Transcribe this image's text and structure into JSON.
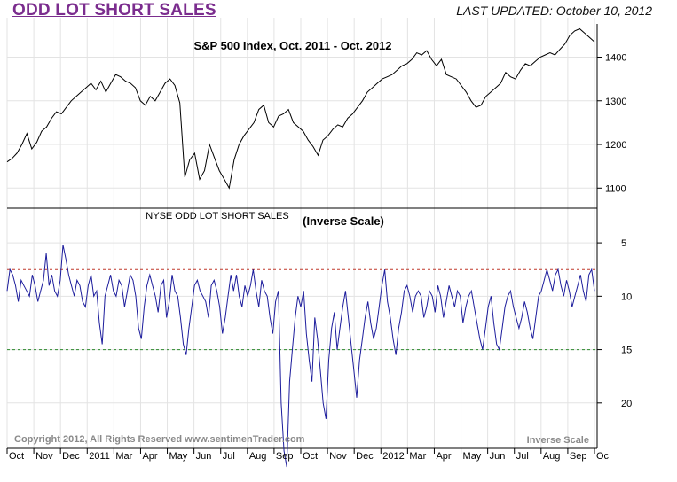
{
  "header": {
    "title": "ODD LOT SHORT SALES",
    "last_updated": "LAST UPDATED:  October 10, 2012"
  },
  "footer": {
    "copyright": "Copyright 2012, All Rights Reserved  www.sentimenTrader.com",
    "scale_note": "Inverse Scale"
  },
  "colors": {
    "sp500_line": "#000000",
    "odd_lot_line": "#1c1c9c",
    "upper_reference": "#c0392b",
    "lower_reference": "#2e8b2e",
    "title": "#7b2d8e"
  },
  "x_axis": {
    "labels": [
      "Oct",
      "Nov",
      "Dec",
      "2011",
      "Mar",
      "Apr",
      "May",
      "Jun",
      "Jul",
      "Aug",
      "Sep",
      "Oct",
      "Nov",
      "Dec",
      "2012",
      "Mar",
      "Apr",
      "May",
      "Jun",
      "Jul",
      "Aug",
      "Sep",
      "Oc"
    ]
  },
  "chart_data": [
    {
      "type": "line",
      "title": "S&P 500 Index, Oct. 2011 - Oct. 2012",
      "ylim": [
        1060,
        1470
      ],
      "yticks": [
        1100,
        1200,
        1300,
        1400
      ],
      "grid": true,
      "series": [
        {
          "values": [
            1160,
            1168,
            1180,
            1200,
            1225,
            1190,
            1205,
            1230,
            1240,
            1260,
            1275,
            1270,
            1285,
            1300,
            1310,
            1320,
            1330,
            1340,
            1325,
            1345,
            1320,
            1340,
            1360,
            1355,
            1345,
            1340,
            1330,
            1300,
            1290,
            1310,
            1300,
            1320,
            1340,
            1350,
            1335,
            1295,
            1125,
            1165,
            1180,
            1120,
            1140,
            1200,
            1170,
            1140,
            1120,
            1100,
            1165,
            1200,
            1220,
            1235,
            1250,
            1280,
            1290,
            1250,
            1240,
            1265,
            1270,
            1280,
            1250,
            1240,
            1230,
            1210,
            1195,
            1175,
            1210,
            1220,
            1235,
            1245,
            1240,
            1260,
            1270,
            1285,
            1300,
            1320,
            1330,
            1340,
            1350,
            1355,
            1360,
            1370,
            1380,
            1385,
            1395,
            1410,
            1405,
            1415,
            1395,
            1380,
            1395,
            1360,
            1355,
            1350,
            1335,
            1320,
            1300,
            1285,
            1290,
            1310,
            1320,
            1330,
            1340,
            1365,
            1355,
            1350,
            1370,
            1385,
            1380,
            1390,
            1400,
            1405,
            1410,
            1405,
            1418,
            1430,
            1450,
            1460,
            1465,
            1455,
            1445,
            1435
          ]
        },
        {
          "values": [
            9.5,
            7.5,
            8.0,
            9.0,
            10.5,
            8.5,
            9.0,
            9.5,
            10.0,
            8.0,
            9.0,
            10.5,
            9.5,
            8.5,
            6.0,
            9.0,
            8.0,
            9.5,
            10.0,
            8.5,
            5.2,
            6.5,
            8.0,
            9.0,
            10.0,
            8.5,
            9.0,
            10.5,
            11.0,
            9.0,
            8.0,
            10.0,
            9.5,
            12.5,
            14.5,
            10.0,
            9.0,
            8.0,
            9.5,
            10.0,
            8.5,
            9.0,
            11.0,
            9.5,
            8.0,
            8.5,
            10.0,
            13.0,
            14.0,
            11.0,
            9.0,
            8.0,
            9.0,
            10.0,
            11.5,
            9.0,
            8.5,
            12.0,
            10.5,
            8.0,
            9.5,
            10.0,
            12.0,
            14.5,
            15.5,
            13.0,
            11.0,
            9.0,
            8.5,
            9.5,
            10.0,
            10.5,
            12.0,
            9.0,
            8.5,
            9.5,
            11.0,
            13.5,
            12.0,
            10.0,
            8.0,
            9.5,
            8.0,
            10.0,
            11.0,
            9.0,
            10.0,
            9.0,
            7.5,
            9.5,
            11.0,
            8.5,
            9.5,
            10.0,
            12.0,
            13.5,
            10.5,
            9.5,
            20.0,
            24.5,
            26.0,
            18.0,
            15.0,
            12.0,
            10.0,
            11.0,
            9.5,
            13.5,
            16.0,
            18.0,
            12.0,
            14.0,
            17.0,
            20.0,
            21.5,
            16.0,
            13.0,
            11.5,
            15.0,
            13.0,
            11.0,
            9.5,
            12.0,
            14.5,
            17.0,
            19.5,
            16.0,
            14.0,
            12.0,
            10.5,
            12.5,
            14.0,
            13.0,
            11.0,
            9.0,
            7.5,
            10.5,
            12.0,
            14.0,
            15.5,
            13.0,
            11.5,
            9.5,
            9.0,
            10.0,
            11.5,
            10.0,
            9.5,
            10.0,
            12.0,
            11.0,
            9.5,
            10.0,
            11.5,
            9.0,
            10.0,
            12.0,
            10.5,
            9.0,
            10.0,
            11.0,
            9.5,
            10.0,
            12.5,
            11.0,
            10.0,
            9.5,
            11.0,
            12.5,
            14.0,
            15.0,
            13.0,
            11.0,
            10.0,
            12.5,
            14.5,
            15.0,
            13.0,
            11.0,
            10.0,
            9.5,
            11.0,
            12.0,
            13.0,
            12.0,
            10.5,
            11.5,
            13.0,
            14.0,
            12.0,
            10.0,
            9.5,
            8.5,
            7.5,
            8.5,
            9.5,
            8.0,
            7.5,
            9.0,
            10.0,
            8.5,
            9.5,
            11.0,
            10.0,
            9.0,
            8.0,
            9.5,
            10.5,
            8.0,
            7.5,
            9.5
          ]
        }
      ]
    },
    {
      "type": "line",
      "title": "NYSE ODD LOT SHORT SALES",
      "subtitle": "(Inverse Scale)",
      "ylim": [
        3,
        24
      ],
      "yticks": [
        5,
        10,
        15,
        20
      ],
      "inverse_scale": true,
      "reference_lines": [
        7.5,
        15
      ],
      "grid": true
    }
  ]
}
